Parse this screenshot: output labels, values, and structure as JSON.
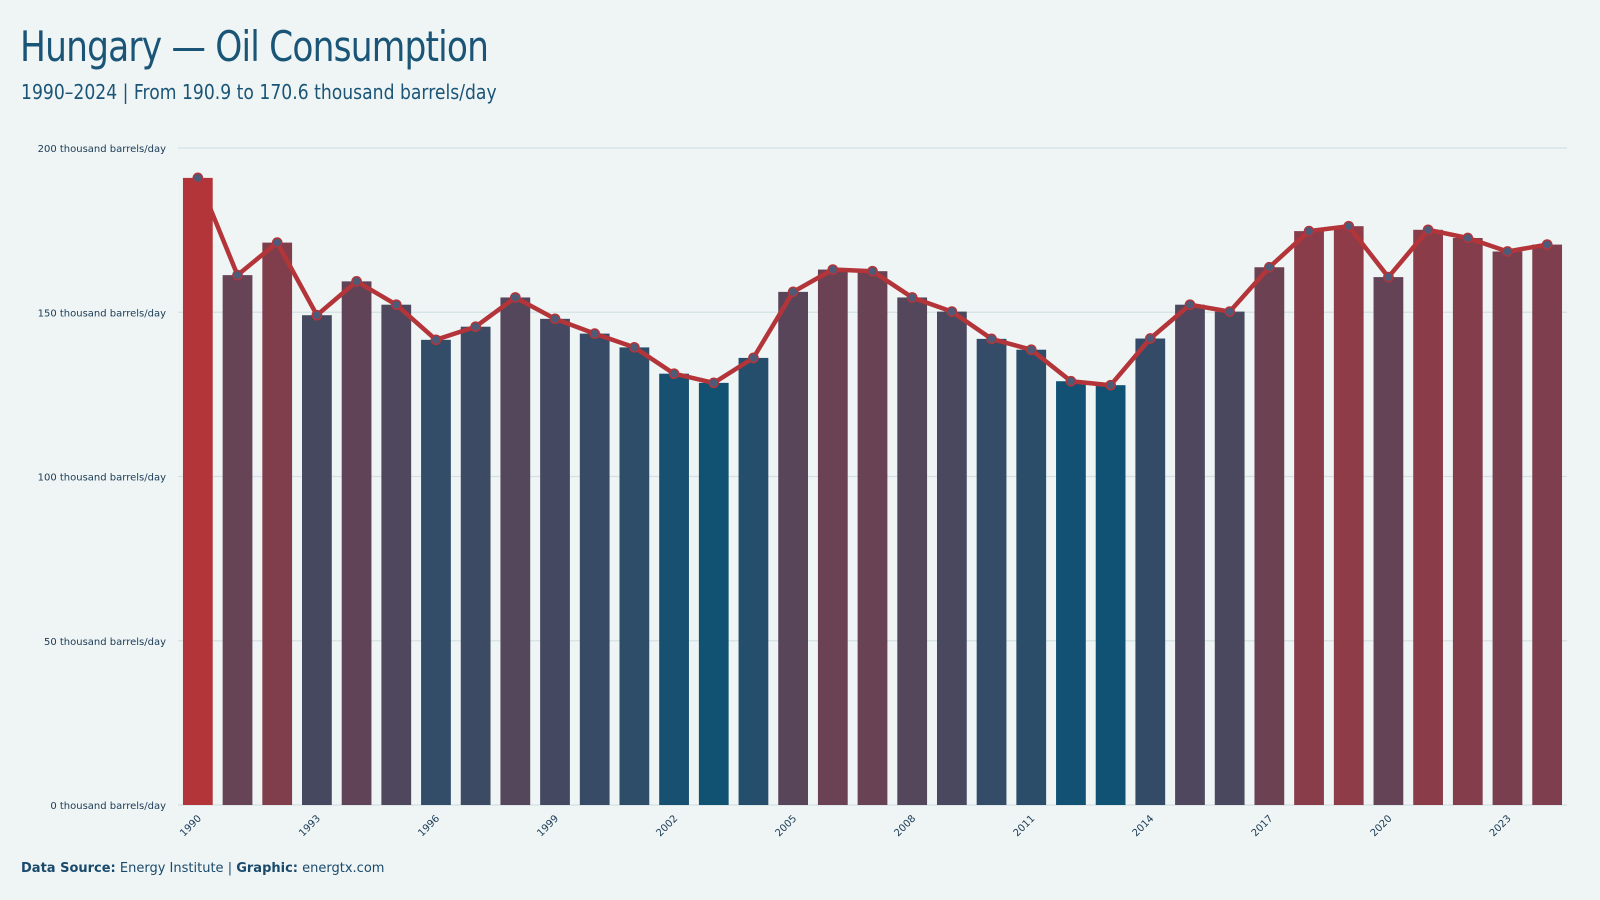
{
  "header": {
    "title": "Hungary — Oil Consumption",
    "subtitle": "1990–2024 | From 190.9 to 170.6 thousand barrels/day"
  },
  "footer": {
    "source_label": "Data Source:",
    "source_value": "Energy Institute",
    "separator": "|",
    "graphic_label": "Graphic:",
    "graphic_value": "energtx.com"
  },
  "colors": {
    "background": "#eff5f5",
    "low": "#0f5274",
    "high": "#b3353a",
    "line": "#b3353a",
    "grid": "#d3e1e4"
  },
  "chart_data": {
    "type": "bar",
    "overlay": "line",
    "categories": [
      1990,
      1991,
      1992,
      1993,
      1994,
      1995,
      1996,
      1997,
      1998,
      1999,
      2000,
      2001,
      2002,
      2003,
      2004,
      2005,
      2006,
      2007,
      2008,
      2009,
      2010,
      2011,
      2012,
      2013,
      2014,
      2015,
      2016,
      2017,
      2018,
      2019,
      2020,
      2021,
      2022,
      2023,
      2024
    ],
    "values": [
      190.9,
      161.3,
      171.2,
      149.1,
      159.4,
      152.3,
      141.6,
      145.6,
      154.5,
      148.0,
      143.5,
      139.3,
      131.3,
      128.5,
      136.1,
      156.2,
      163.0,
      162.5,
      154.5,
      150.2,
      141.9,
      138.6,
      129.0,
      127.8,
      142.0,
      152.3,
      150.2,
      163.7,
      174.7,
      176.2,
      160.7,
      175.1,
      172.6,
      168.5,
      170.6
    ],
    "x_tick_labels": [
      "1990",
      "1993",
      "1996",
      "1999",
      "2002",
      "2005",
      "2008",
      "2011",
      "2014",
      "2017",
      "2020",
      "2023"
    ],
    "y_ticks": [
      0,
      50,
      100,
      150,
      200
    ],
    "y_tick_labels": [
      "0 thousand barrels/day",
      "50 thousand barrels/day",
      "100 thousand barrels/day",
      "150 thousand barrels/day",
      "200 thousand barrels/day"
    ],
    "ylim": [
      0,
      200
    ],
    "grid": true,
    "legend": "none"
  }
}
